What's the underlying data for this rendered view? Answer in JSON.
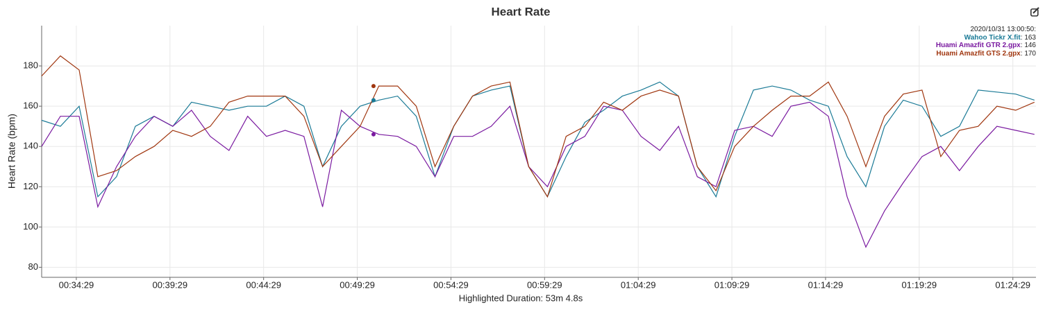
{
  "chart_data": {
    "type": "line",
    "title": "Heart Rate",
    "y_label": "Heart Rate (bpm)",
    "x_label": "Highlighted Duration: 53m 4.8s",
    "x": [
      1958,
      2018,
      2078,
      2138,
      2198,
      2258,
      2318,
      2378,
      2438,
      2498,
      2558,
      2618,
      2678,
      2738,
      2798,
      2858,
      2918,
      2978,
      3038,
      3098,
      3158,
      3218,
      3278,
      3338,
      3398,
      3458,
      3518,
      3578,
      3638,
      3698,
      3758,
      3818,
      3878,
      3938,
      3998,
      4058,
      4118,
      4178,
      4238,
      4298,
      4358,
      4418,
      4478,
      4538,
      4598,
      4658,
      4718,
      4778,
      4838,
      4898,
      4958,
      5018,
      5078,
      5138
    ],
    "series": [
      {
        "name": "Wahoo Tickr X.fit",
        "color": "#1a7a96",
        "values": [
          153,
          150,
          160,
          115,
          125,
          150,
          155,
          150,
          162,
          160,
          158,
          160,
          160,
          165,
          160,
          130,
          150,
          160,
          163,
          165,
          155,
          125,
          150,
          165,
          168,
          170,
          130,
          115,
          135,
          152,
          158,
          165,
          168,
          172,
          165,
          130,
          115,
          145,
          168,
          170,
          168,
          163,
          160,
          135,
          120,
          150,
          163,
          160,
          145,
          150,
          168,
          167,
          166,
          163
        ]
      },
      {
        "name": "Huami Amazfit GTR 2.gpx",
        "color": "#7a1aa0",
        "values": [
          140,
          155,
          155,
          110,
          130,
          145,
          155,
          150,
          158,
          145,
          138,
          155,
          145,
          148,
          145,
          110,
          158,
          150,
          146,
          145,
          140,
          125,
          145,
          145,
          150,
          160,
          130,
          120,
          140,
          145,
          160,
          158,
          145,
          138,
          150,
          125,
          120,
          148,
          150,
          145,
          160,
          162,
          155,
          115,
          90,
          108,
          122,
          135,
          140,
          128,
          140,
          150,
          148,
          146
        ]
      },
      {
        "name": "Huami Amazfit GTS 2.gpx",
        "color": "#a0360f",
        "values": [
          175,
          185,
          178,
          125,
          128,
          135,
          140,
          148,
          145,
          150,
          162,
          165,
          165,
          165,
          155,
          130,
          140,
          150,
          170,
          170,
          160,
          130,
          150,
          165,
          170,
          172,
          130,
          115,
          145,
          150,
          162,
          158,
          165,
          168,
          165,
          130,
          118,
          140,
          150,
          158,
          165,
          165,
          172,
          155,
          130,
          155,
          166,
          168,
          135,
          148,
          150,
          160,
          158,
          162
        ]
      }
    ],
    "hover": {
      "time": "2020/10/31 13:00:50:",
      "x": 3021,
      "values": [
        163,
        146,
        170
      ]
    },
    "xlim": [
      1958,
      5143
    ],
    "ylim": [
      75,
      200
    ],
    "xticks": [
      {
        "value": 2069,
        "label": "00:34:29"
      },
      {
        "value": 2369,
        "label": "00:39:29"
      },
      {
        "value": 2669,
        "label": "00:44:29"
      },
      {
        "value": 2969,
        "label": "00:49:29"
      },
      {
        "value": 3269,
        "label": "00:54:29"
      },
      {
        "value": 3569,
        "label": "00:59:29"
      },
      {
        "value": 3869,
        "label": "01:04:29"
      },
      {
        "value": 4169,
        "label": "01:09:29"
      },
      {
        "value": 4469,
        "label": "01:14:29"
      },
      {
        "value": 4769,
        "label": "01:19:29"
      },
      {
        "value": 5069,
        "label": "01:24:29"
      }
    ],
    "yticks": [
      80,
      100,
      120,
      140,
      160,
      180
    ],
    "grid": true
  }
}
